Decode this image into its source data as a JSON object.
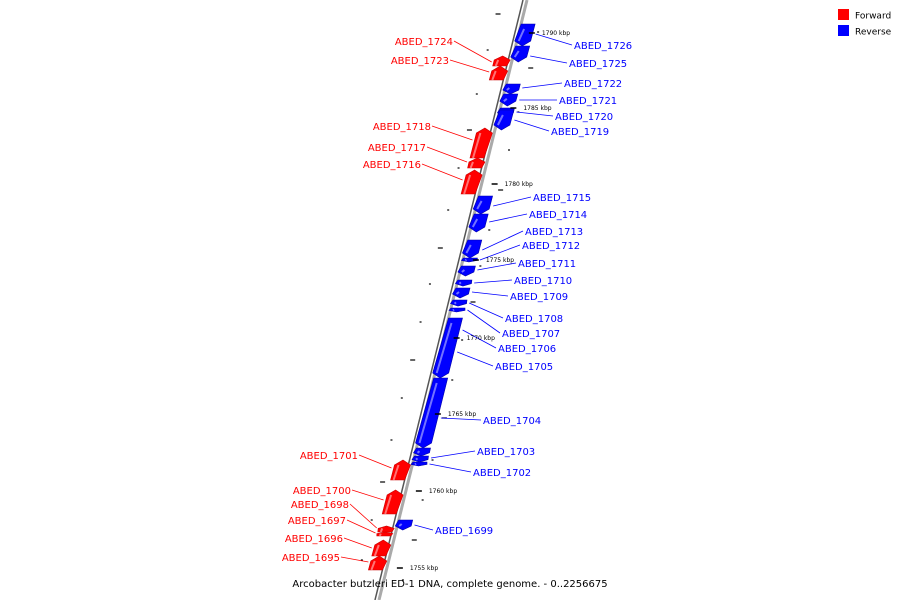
{
  "colors": {
    "forward": "#ff0000",
    "reverse": "#0000ff",
    "backbone": "#999999",
    "label_line_forward": "#ff0000",
    "label_line_reverse": "#0000ff",
    "tick": "#000000"
  },
  "legend": [
    {
      "label": "Forward",
      "color": "#ff0000"
    },
    {
      "label": "Reverse",
      "color": "#0000ff"
    }
  ],
  "caption": "Arcobacter butzleri ED-1 DNA, complete genome. - 0..2256675",
  "scale_labels": [
    "1790 kbp",
    "1785 kbp",
    "1780 kbp",
    "1775 kbp",
    "1770 kbp",
    "1765 kbp",
    "1760 kbp",
    "1755 kbp"
  ],
  "genes": [
    {
      "label": "ABED_1726",
      "strand": "reverse"
    },
    {
      "label": "ABED_1725",
      "strand": "reverse"
    },
    {
      "label": "ABED_1724",
      "strand": "forward"
    },
    {
      "label": "ABED_1723",
      "strand": "forward"
    },
    {
      "label": "ABED_1722",
      "strand": "reverse"
    },
    {
      "label": "ABED_1721",
      "strand": "reverse"
    },
    {
      "label": "ABED_1720",
      "strand": "reverse"
    },
    {
      "label": "ABED_1719",
      "strand": "reverse"
    },
    {
      "label": "ABED_1718",
      "strand": "forward"
    },
    {
      "label": "ABED_1717",
      "strand": "forward"
    },
    {
      "label": "ABED_1716",
      "strand": "forward"
    },
    {
      "label": "ABED_1715",
      "strand": "reverse"
    },
    {
      "label": "ABED_1714",
      "strand": "reverse"
    },
    {
      "label": "ABED_1713",
      "strand": "reverse"
    },
    {
      "label": "ABED_1712",
      "strand": "reverse"
    },
    {
      "label": "ABED_1711",
      "strand": "reverse"
    },
    {
      "label": "ABED_1710",
      "strand": "reverse"
    },
    {
      "label": "ABED_1709",
      "strand": "reverse"
    },
    {
      "label": "ABED_1708",
      "strand": "reverse"
    },
    {
      "label": "ABED_1707",
      "strand": "reverse"
    },
    {
      "label": "ABED_1706",
      "strand": "reverse"
    },
    {
      "label": "ABED_1705",
      "strand": "reverse"
    },
    {
      "label": "ABED_1704",
      "strand": "reverse"
    },
    {
      "label": "ABED_1703",
      "strand": "reverse"
    },
    {
      "label": "ABED_1702",
      "strand": "reverse"
    },
    {
      "label": "ABED_1701",
      "strand": "forward"
    },
    {
      "label": "ABED_1700",
      "strand": "forward"
    },
    {
      "label": "ABED_1699",
      "strand": "reverse"
    },
    {
      "label": "ABED_1698",
      "strand": "forward"
    },
    {
      "label": "ABED_1697",
      "strand": "forward"
    },
    {
      "label": "ABED_1696",
      "strand": "forward"
    },
    {
      "label": "ABED_1695",
      "strand": "forward"
    }
  ]
}
